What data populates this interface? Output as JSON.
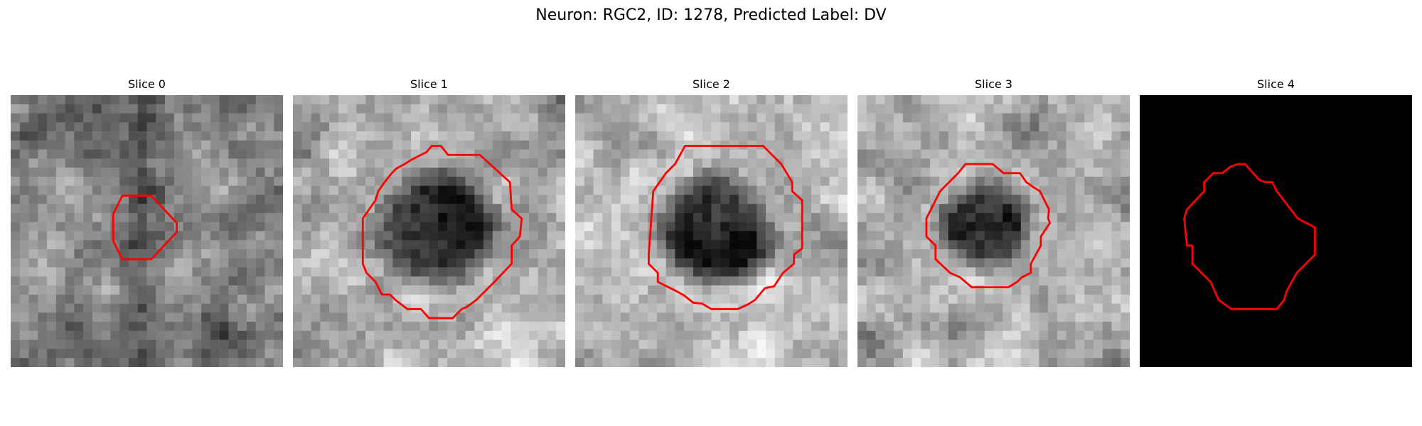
{
  "figure": {
    "title": "Neuron: RGC2, ID: 1278, Predicted Label: DV"
  },
  "panels": [
    {
      "title": "Slice 0",
      "style": "grayscale",
      "contour_color": "#ff0000",
      "image_description": "noisy grayscale texture, mostly mid-gray with a dark vertical band and small ring contour"
    },
    {
      "title": "Slice 1",
      "style": "grayscale",
      "contour_color": "#ff0000",
      "image_description": "light speckled texture with large dark roughly circular blob outlined by red polygon"
    },
    {
      "title": "Slice 2",
      "style": "grayscale",
      "contour_color": "#ff0000",
      "image_description": "light speckled texture with dark circular blob outlined by red polygon"
    },
    {
      "title": "Slice 3",
      "style": "grayscale",
      "contour_color": "#ff0000",
      "image_description": "light speckled texture with smaller dark blob outlined by red polygon"
    },
    {
      "title": "Slice 4",
      "style": "black",
      "contour_color": "#ff0000",
      "image_description": "black image with red polygon contour"
    }
  ]
}
